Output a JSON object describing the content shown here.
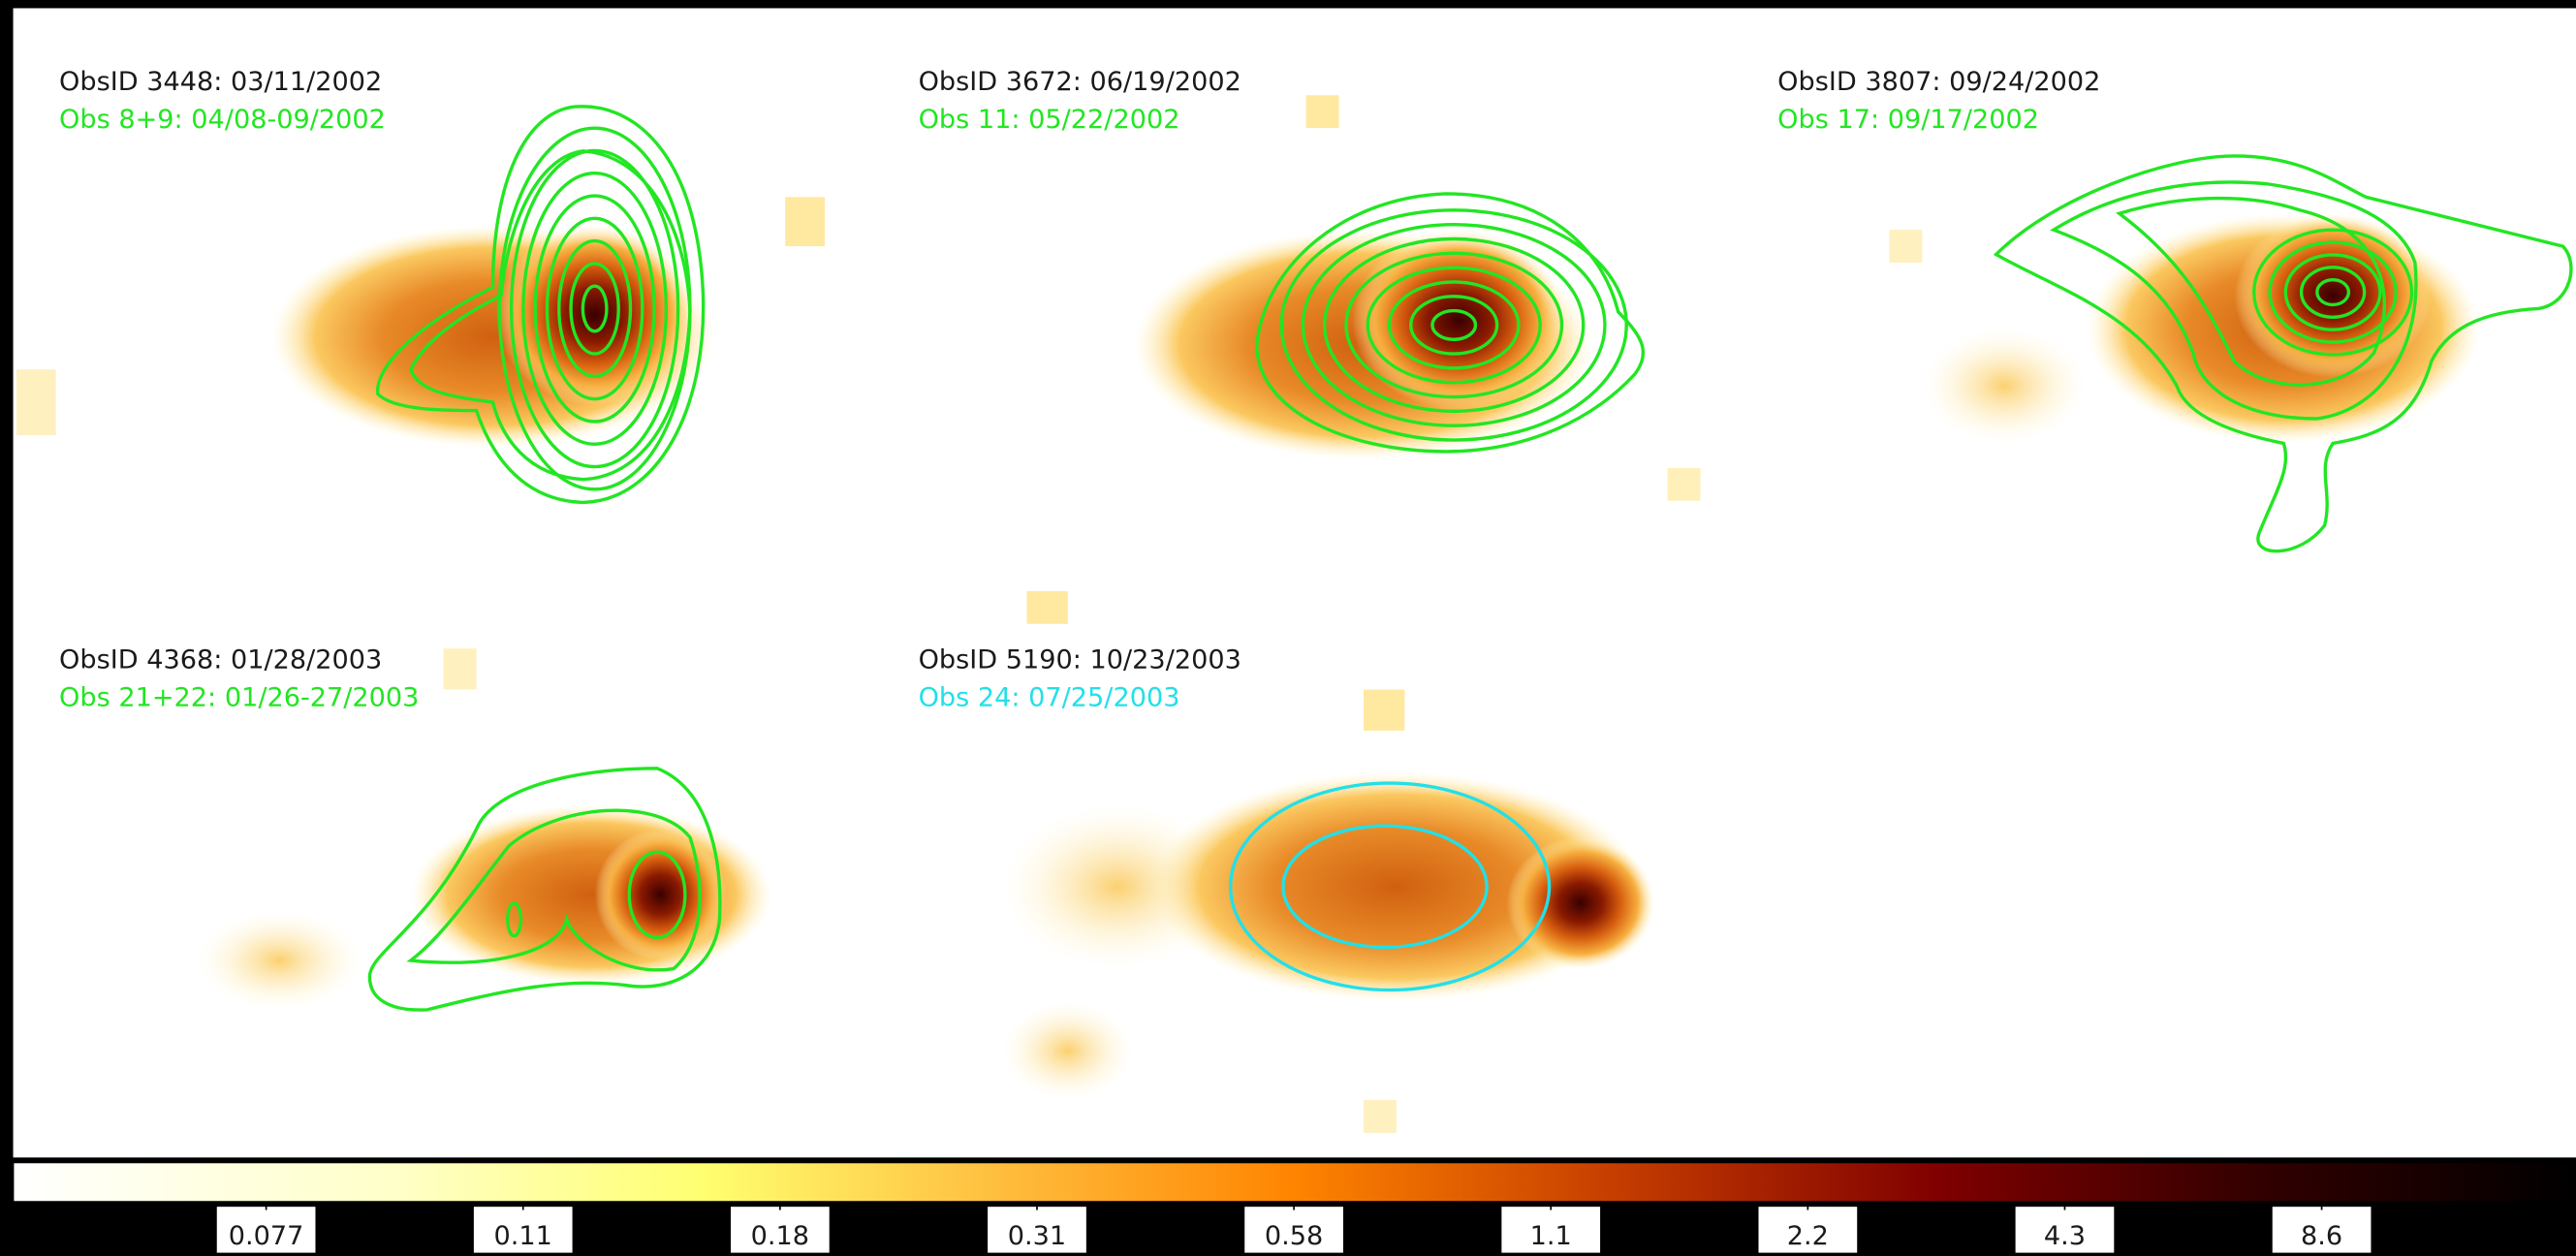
{
  "panels": [
    {
      "observation": "ObsID 3448: 03/11/2002",
      "overlay": "Obs 8+9: 04/08-09/2002",
      "overlay_color": "#22e622"
    },
    {
      "observation": "ObsID 3672: 06/19/2002",
      "overlay": "Obs 11: 05/22/2002",
      "overlay_color": "#22e622"
    },
    {
      "observation": "ObsID 3807: 09/24/2002",
      "overlay": "Obs 17: 09/17/2002",
      "overlay_color": "#22e622"
    },
    {
      "observation": "ObsID 4368: 01/28/2003",
      "overlay": "Obs 21+22: 01/26-27/2003",
      "overlay_color": "#22e622"
    },
    {
      "observation": "ObsID 5190: 10/23/2003",
      "overlay": "Obs 24: 07/25/2003",
      "overlay_color": "#22e0e8"
    }
  ],
  "colorbar": {
    "ticks": [
      0.077,
      0.11,
      0.18,
      0.31,
      0.58,
      1.1,
      2.2,
      4.3,
      8.6
    ]
  }
}
